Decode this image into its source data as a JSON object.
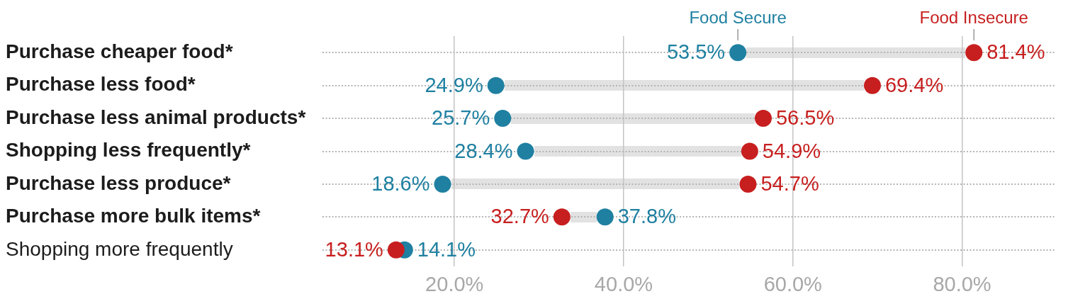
{
  "chart_data": {
    "type": "scatter",
    "orientation": "horizontal",
    "categories": [
      "Purchase cheaper food*",
      "Purchase less food*",
      "Purchase less animal products*",
      "Shopping less frequently*",
      "Purchase less produce*",
      "Purchase more bulk items*",
      "Shopping more frequently"
    ],
    "series": [
      {
        "name": "Food Secure",
        "color": "#1f80a1",
        "values": [
          53.5,
          24.9,
          25.7,
          28.4,
          18.6,
          37.8,
          14.1
        ],
        "value_labels": [
          "53.5%",
          "24.9%",
          "25.7%",
          "28.4%",
          "18.6%",
          "37.8%",
          "14.1%"
        ]
      },
      {
        "name": "Food Insecure",
        "color": "#c71f1f",
        "values": [
          81.4,
          69.4,
          56.5,
          54.9,
          54.7,
          32.7,
          13.1
        ],
        "value_labels": [
          "81.4%",
          "69.4%",
          "56.5%",
          "54.9%",
          "54.7%",
          "32.7%",
          "13.1%"
        ]
      }
    ],
    "xlim": [
      4.4,
      91.1
    ],
    "xticks": [
      {
        "value": 20,
        "label": "20.0%"
      },
      {
        "value": 40,
        "label": "40.0%"
      },
      {
        "value": 60,
        "label": "60.0%"
      },
      {
        "value": 80,
        "label": "80.0%"
      }
    ],
    "grid": true,
    "marker": "circle"
  }
}
